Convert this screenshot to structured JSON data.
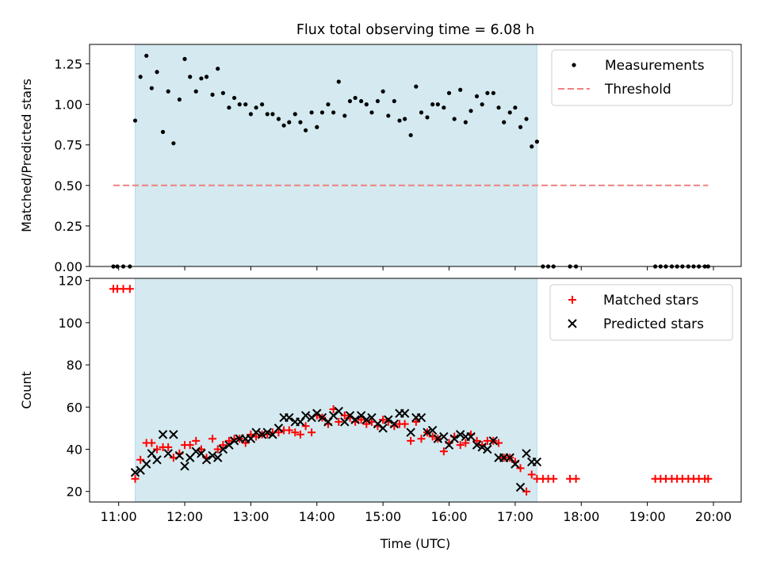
{
  "title": "Flux total observing time = 6.08 h",
  "colors": {
    "shade": "#d4eaf0",
    "measurement": "#000000",
    "threshold": "#f08080",
    "matched": "#ff0000",
    "predicted": "#000000"
  },
  "chart_data": [
    {
      "type": "scatter",
      "ylabel": "Matched/Predicted stars",
      "xlim": [
        10.56,
        20.42
      ],
      "ylim": [
        0,
        1.37
      ],
      "yticks": [
        0,
        0.25,
        0.5,
        0.75,
        1.0,
        1.25
      ],
      "ytick_labels": [
        "0.00",
        "0.25",
        "0.50",
        "0.75",
        "1.00",
        "1.25"
      ],
      "shaded_span": [
        11.25,
        17.33
      ],
      "legend": {
        "placement": "top-right",
        "entries": [
          "Measurements",
          "Threshold"
        ]
      },
      "threshold": {
        "name": "Threshold",
        "y": 0.5,
        "x_range": [
          10.92,
          19.92
        ],
        "style": "dashed"
      },
      "series": [
        {
          "name": "Measurements",
          "x": [
            10.92,
            10.98,
            11.07,
            11.17,
            11.25,
            11.33,
            11.42,
            11.5,
            11.58,
            11.67,
            11.75,
            11.83,
            11.92,
            12.0,
            12.08,
            12.17,
            12.25,
            12.33,
            12.42,
            12.5,
            12.58,
            12.67,
            12.75,
            12.83,
            12.92,
            13.0,
            13.08,
            13.17,
            13.25,
            13.33,
            13.42,
            13.5,
            13.58,
            13.67,
            13.75,
            13.83,
            13.92,
            14.0,
            14.08,
            14.17,
            14.25,
            14.33,
            14.42,
            14.5,
            14.58,
            14.67,
            14.75,
            14.83,
            14.92,
            15.0,
            15.08,
            15.17,
            15.25,
            15.33,
            15.42,
            15.5,
            15.58,
            15.67,
            15.75,
            15.83,
            15.92,
            16.0,
            16.08,
            16.17,
            16.25,
            16.33,
            16.42,
            16.5,
            16.58,
            16.67,
            16.75,
            16.83,
            16.92,
            17.0,
            17.08,
            17.17,
            17.25,
            17.33,
            17.42,
            17.5,
            17.58,
            17.83,
            17.92,
            19.12,
            19.2,
            19.28,
            19.37,
            19.45,
            19.53,
            19.62,
            19.7,
            19.78,
            19.87,
            19.92
          ],
          "y": [
            0,
            0,
            0,
            0,
            0.9,
            1.17,
            1.3,
            1.1,
            1.2,
            0.83,
            1.08,
            0.76,
            1.03,
            1.28,
            1.17,
            1.08,
            1.16,
            1.17,
            1.06,
            1.22,
            1.07,
            0.98,
            1.04,
            1.0,
            1.0,
            0.94,
            0.98,
            1.0,
            0.94,
            0.94,
            0.91,
            0.87,
            0.89,
            0.94,
            0.89,
            0.84,
            0.95,
            0.86,
            0.95,
            1.0,
            0.95,
            1.14,
            0.93,
            1.02,
            1.04,
            1.02,
            1.0,
            0.95,
            1.02,
            1.08,
            0.93,
            1.02,
            0.9,
            0.91,
            0.81,
            1.11,
            0.95,
            0.92,
            1.0,
            1.0,
            0.98,
            1.07,
            0.91,
            1.09,
            0.89,
            0.96,
            1.05,
            1.0,
            1.07,
            1.07,
            0.98,
            0.89,
            0.95,
            0.98,
            0.86,
            0.91,
            0.74,
            0.77,
            0,
            0,
            0,
            0,
            0,
            0,
            0,
            0,
            0,
            0,
            0,
            0,
            0,
            0,
            0,
            0
          ]
        }
      ]
    },
    {
      "type": "scatter",
      "ylabel": "Count",
      "xlabel": "Time (UTC)",
      "xlim": [
        10.56,
        20.42
      ],
      "ylim": [
        15,
        121
      ],
      "xticks": [
        11,
        12,
        13,
        14,
        15,
        16,
        17,
        18,
        19,
        20
      ],
      "xtick_labels": [
        "11:00",
        "12:00",
        "13:00",
        "14:00",
        "15:00",
        "16:00",
        "17:00",
        "18:00",
        "19:00",
        "20:00"
      ],
      "yticks": [
        20,
        40,
        60,
        80,
        100,
        120
      ],
      "ytick_labels": [
        "20",
        "40",
        "60",
        "80",
        "100",
        "120"
      ],
      "shaded_span": [
        11.25,
        17.33
      ],
      "legend": {
        "placement": "top-right",
        "entries": [
          "Matched stars",
          "Predicted stars"
        ]
      },
      "series": [
        {
          "name": "Matched stars",
          "marker": "plus",
          "x": [
            10.92,
            10.98,
            11.07,
            11.17,
            11.25,
            11.33,
            11.42,
            11.5,
            11.58,
            11.67,
            11.75,
            11.83,
            11.92,
            12.0,
            12.08,
            12.17,
            12.25,
            12.33,
            12.42,
            12.5,
            12.58,
            12.67,
            12.75,
            12.83,
            12.92,
            13.0,
            13.08,
            13.17,
            13.25,
            13.33,
            13.42,
            13.5,
            13.58,
            13.67,
            13.75,
            13.83,
            13.92,
            14.0,
            14.08,
            14.17,
            14.25,
            14.33,
            14.42,
            14.5,
            14.58,
            14.67,
            14.75,
            14.83,
            14.92,
            15.0,
            15.08,
            15.17,
            15.25,
            15.33,
            15.42,
            15.5,
            15.58,
            15.67,
            15.75,
            15.83,
            15.92,
            16.0,
            16.08,
            16.17,
            16.25,
            16.33,
            16.42,
            16.5,
            16.58,
            16.67,
            16.75,
            16.83,
            16.92,
            17.0,
            17.08,
            17.17,
            17.25,
            17.33,
            17.42,
            17.5,
            17.58,
            17.83,
            17.92,
            19.12,
            19.2,
            19.28,
            19.37,
            19.45,
            19.53,
            19.62,
            19.7,
            19.78,
            19.87,
            19.92
          ],
          "y": [
            116,
            116,
            116,
            116,
            26,
            35,
            43,
            43,
            40,
            41,
            41,
            36,
            38,
            42,
            42,
            44,
            40,
            36,
            45,
            40,
            42,
            44,
            45,
            45,
            43,
            47,
            46,
            47,
            47,
            48,
            48,
            49,
            49,
            48,
            47,
            51,
            48,
            56,
            55,
            52,
            59,
            53,
            56,
            55,
            53,
            54,
            52,
            53,
            51,
            54,
            53,
            51,
            52,
            52,
            44,
            53,
            45,
            48,
            46,
            45,
            39,
            43,
            46,
            42,
            43,
            47,
            44,
            42,
            44,
            44,
            43,
            36,
            36,
            34,
            31,
            20,
            28,
            26,
            26,
            26,
            26,
            26,
            26,
            26,
            26,
            26,
            26,
            26,
            26,
            26,
            26,
            26,
            26,
            26
          ]
        },
        {
          "name": "Predicted stars",
          "marker": "x",
          "x": [
            11.25,
            11.33,
            11.42,
            11.5,
            11.58,
            11.67,
            11.75,
            11.83,
            11.92,
            12.0,
            12.08,
            12.17,
            12.25,
            12.33,
            12.42,
            12.5,
            12.58,
            12.67,
            12.75,
            12.83,
            12.92,
            13.0,
            13.08,
            13.17,
            13.25,
            13.33,
            13.42,
            13.5,
            13.58,
            13.67,
            13.75,
            13.83,
            13.92,
            14.0,
            14.08,
            14.17,
            14.25,
            14.33,
            14.42,
            14.5,
            14.58,
            14.67,
            14.75,
            14.83,
            14.92,
            15.0,
            15.08,
            15.17,
            15.25,
            15.33,
            15.42,
            15.5,
            15.58,
            15.67,
            15.75,
            15.83,
            15.92,
            16.0,
            16.08,
            16.17,
            16.25,
            16.33,
            16.42,
            16.5,
            16.58,
            16.67,
            16.75,
            16.83,
            16.92,
            17.0,
            17.08,
            17.17,
            17.25,
            17.33
          ],
          "y": [
            29,
            30,
            33,
            38,
            35,
            47,
            38,
            47,
            37,
            32,
            36,
            39,
            38,
            35,
            37,
            36,
            40,
            42,
            44,
            45,
            45,
            45,
            48,
            47,
            48,
            47,
            50,
            55,
            55,
            53,
            53,
            56,
            55,
            57,
            55,
            53,
            56,
            58,
            53,
            56,
            54,
            56,
            54,
            55,
            52,
            50,
            54,
            52,
            57,
            57,
            48,
            55,
            55,
            48,
            49,
            45,
            46,
            42,
            45,
            47,
            46,
            46,
            42,
            41,
            40,
            44,
            36,
            36,
            36,
            33,
            22,
            38,
            34,
            34
          ]
        }
      ]
    }
  ]
}
